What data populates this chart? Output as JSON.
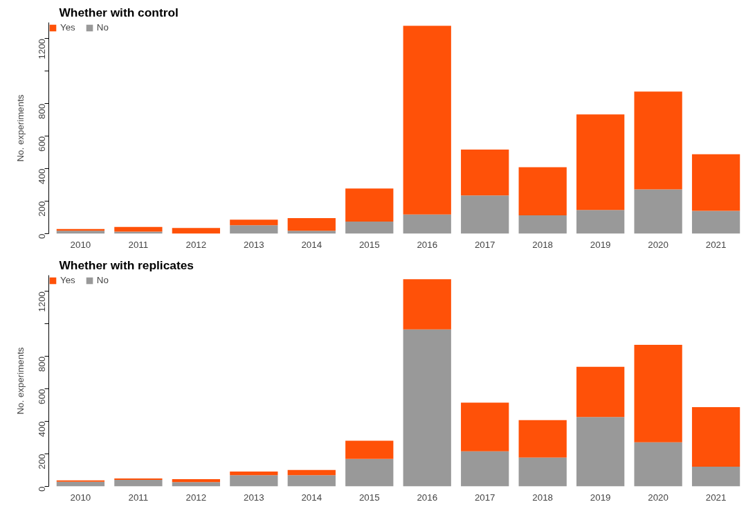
{
  "chart_data": [
    {
      "type": "bar",
      "stacked": true,
      "title": "Whether with control",
      "ylabel": "No. experiments",
      "categories": [
        "2010",
        "2011",
        "2012",
        "2013",
        "2014",
        "2015",
        "2016",
        "2017",
        "2018",
        "2019",
        "2020",
        "2021"
      ],
      "series": [
        {
          "name": "No",
          "color": "#999999",
          "values": [
            18,
            13,
            null,
            52,
            18,
            75,
            118,
            235,
            113,
            146,
            273,
            141
          ]
        },
        {
          "name": "Yes",
          "color": "#ff5108",
          "values": [
            11,
            29,
            35,
            34,
            78,
            203,
            1162,
            283,
            296,
            588,
            602,
            348
          ]
        }
      ],
      "ylim": [
        0,
        1300
      ],
      "yticks": [
        0,
        200,
        400,
        600,
        800,
        {
          "value": 1000,
          "label": null
        },
        1200
      ],
      "legend": "top left",
      "grid": false
    },
    {
      "type": "bar",
      "stacked": true,
      "title": "Whether with replicates",
      "ylabel": "No. experiments",
      "categories": [
        "2010",
        "2011",
        "2012",
        "2013",
        "2014",
        "2015",
        "2016",
        "2017",
        "2018",
        "2019",
        "2020",
        "2021"
      ],
      "series": [
        {
          "name": "No",
          "color": "#999999",
          "values": [
            29,
            40,
            27,
            69,
            69,
            169,
            966,
            216,
            178,
            427,
            272,
            122
          ]
        },
        {
          "name": "Yes",
          "color": "#ff5108",
          "values": [
            8,
            9,
            18,
            23,
            32,
            112,
            309,
            300,
            230,
            309,
            600,
            366
          ]
        }
      ],
      "ylim": [
        0,
        1300
      ],
      "yticks": [
        0,
        200,
        400,
        600,
        800,
        {
          "value": 1000,
          "label": null
        },
        1200
      ],
      "legend": "top left",
      "grid": false
    }
  ]
}
